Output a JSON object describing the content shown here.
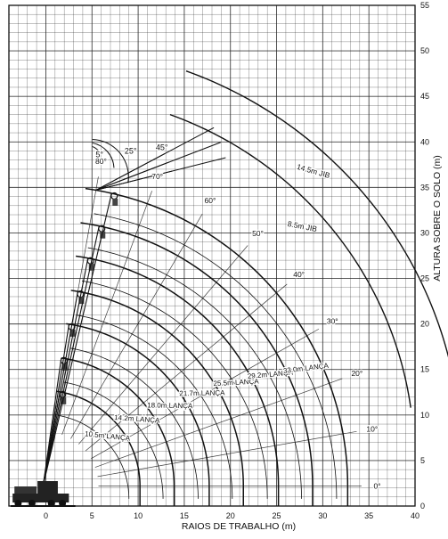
{
  "chart": {
    "x_axis_label": "RAIOS DE TRABALHO (m)",
    "y_axis_label": "ALTURA SOBRE O SOLO (m)",
    "x_ticks": [
      0,
      5,
      10,
      15,
      20,
      25,
      30,
      35,
      40
    ],
    "y_ticks": [
      0,
      5,
      10,
      15,
      20,
      25,
      30,
      35,
      40,
      45,
      50,
      55
    ],
    "x_range": [
      -4,
      40
    ],
    "y_range": [
      0,
      55
    ],
    "line_color": "#111111",
    "grid_color": "#222222"
  },
  "booms": [
    {
      "label": "10.5m LANÇA",
      "length": 10.5
    },
    {
      "label": "14.2m LANÇA",
      "length": 14.2
    },
    {
      "label": "18.0m LANÇA",
      "length": 18.0
    },
    {
      "label": "21.7m LANÇA",
      "length": 21.7
    },
    {
      "label": "25.5m LANÇA",
      "length": 25.5
    },
    {
      "label": "29.2m LANÇA",
      "length": 29.2
    },
    {
      "label": "33.0m LANÇA",
      "length": 33.0
    }
  ],
  "jibs": [
    {
      "label": "8.5m JIB",
      "length": 8.5
    },
    {
      "label": "14.5m JIB",
      "length": 14.5
    }
  ],
  "boom_angles": [
    {
      "label": "0°",
      "deg": 0
    },
    {
      "label": "10°",
      "deg": 10
    },
    {
      "label": "20°",
      "deg": 20
    },
    {
      "label": "30°",
      "deg": 30
    },
    {
      "label": "40°",
      "deg": 40
    },
    {
      "label": "50°",
      "deg": 50
    },
    {
      "label": "60°",
      "deg": 60
    },
    {
      "label": "70°",
      "deg": 70
    },
    {
      "label": "80°",
      "deg": 80
    }
  ],
  "jib_offsets": [
    {
      "label": "5°",
      "deg": 5
    },
    {
      "label": "25°",
      "deg": 25
    },
    {
      "label": "45°",
      "deg": 45
    }
  ]
}
